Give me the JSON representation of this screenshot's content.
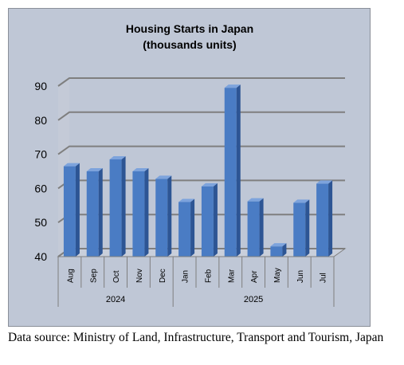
{
  "chart_data": {
    "type": "bar",
    "title": "Housing Starts in Japan",
    "subtitle": "(thousands units)",
    "categories": [
      "Aug",
      "Sep",
      "Oct",
      "Nov",
      "Dec",
      "Jan",
      "Feb",
      "Mar",
      "Apr",
      "May",
      "Jun",
      "Jul"
    ],
    "values": [
      66.5,
      65,
      68.5,
      65,
      62.8,
      56,
      60.6,
      89.5,
      56.2,
      43,
      55.8,
      61.4
    ],
    "groups": [
      {
        "label": "2024",
        "start": 0,
        "end": 4
      },
      {
        "label": "2025",
        "start": 5,
        "end": 11
      }
    ],
    "yticks": [
      40,
      50,
      60,
      70,
      80,
      90
    ],
    "ylim": [
      40,
      90
    ],
    "grid": true,
    "bar_color": "#4a7cc4",
    "background_color": "#bfc7d6"
  },
  "source_note": "Data source: Ministry of Land, Infrastructure, Transport and Tourism, Japan"
}
